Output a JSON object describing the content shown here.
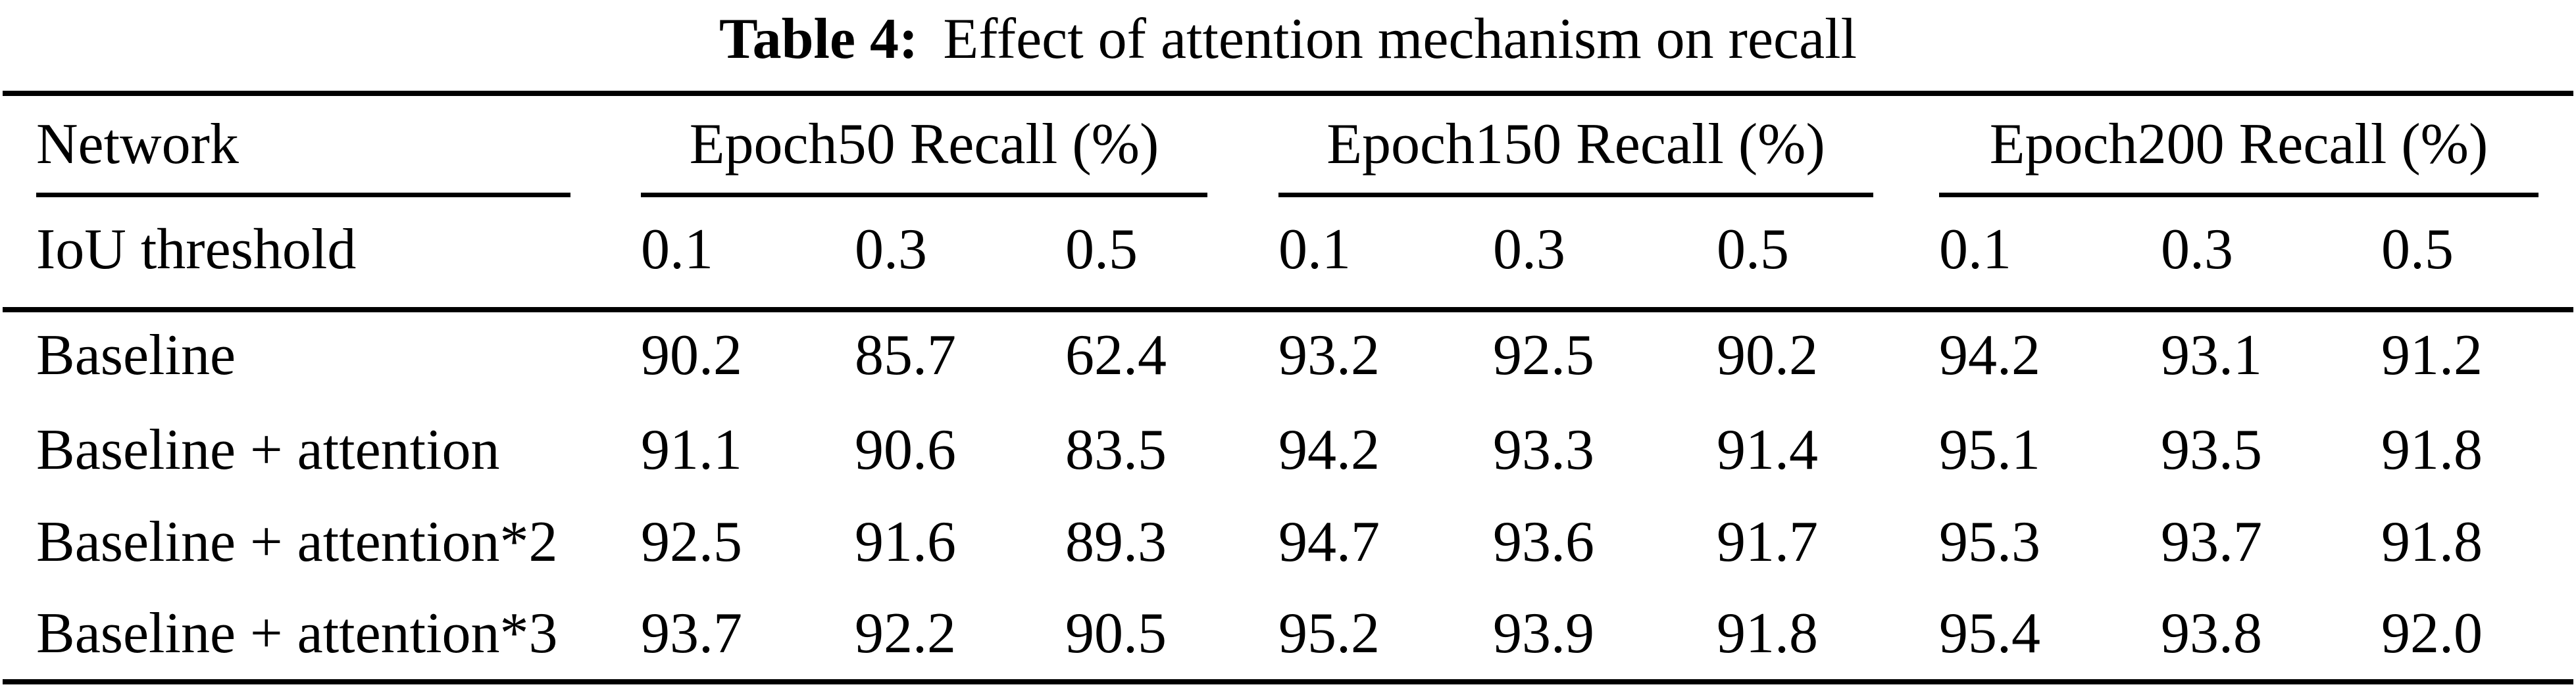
{
  "title": {
    "label": "Table 4:",
    "text": "Effect of attention mechanism on recall"
  },
  "table": {
    "col_headers": {
      "network": "Network",
      "groups": [
        {
          "label": "Epoch50 Recall (%)"
        },
        {
          "label": "Epoch150 Recall (%)"
        },
        {
          "label": "Epoch200 Recall (%)"
        }
      ]
    },
    "iou_row": {
      "label": "IoU threshold",
      "values": [
        "0.1",
        "0.3",
        "0.5",
        "0.1",
        "0.3",
        "0.5",
        "0.1",
        "0.3",
        "0.5"
      ]
    },
    "rows": [
      {
        "name": "Baseline",
        "values": [
          "90.2",
          "85.7",
          "62.4",
          "93.2",
          "92.5",
          "90.2",
          "94.2",
          "93.1",
          "91.2"
        ]
      },
      {
        "name": "Baseline + attention",
        "values": [
          "91.1",
          "90.6",
          "83.5",
          "94.2",
          "93.3",
          "91.4",
          "95.1",
          "93.5",
          "91.8"
        ]
      },
      {
        "name": "Baseline + attention*2",
        "values": [
          "92.5",
          "91.6",
          "89.3",
          "94.7",
          "93.6",
          "91.7",
          "95.3",
          "93.7",
          "91.8"
        ]
      },
      {
        "name": "Baseline + attention*3",
        "values": [
          "93.7",
          "92.2",
          "90.5",
          "95.2",
          "93.9",
          "91.8",
          "95.4",
          "93.8",
          "92.0"
        ]
      }
    ]
  },
  "colors": {
    "ink": "#000000",
    "background": "#ffffff"
  }
}
